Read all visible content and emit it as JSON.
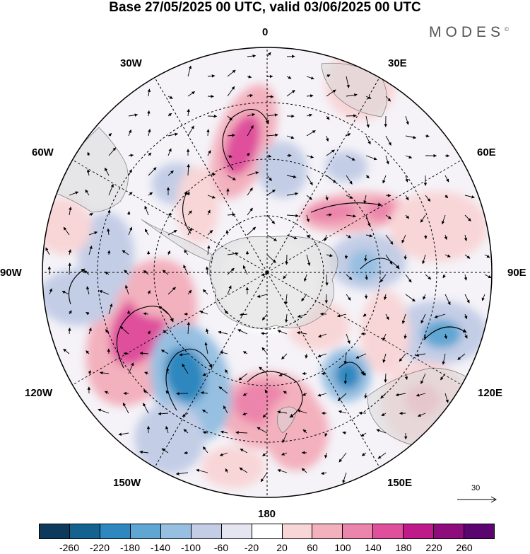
{
  "title": "Base 27/05/2025 00 UTC, valid 03/06/2025 00 UTC",
  "brand": "MODES",
  "brand_mark": "©",
  "map": {
    "projection": "south polar stereographic",
    "longitude_labels": {
      "top": "0",
      "top_right": "30E",
      "right_upper": "60E",
      "right": "90E",
      "right_lower": "120E",
      "bottom_right": "150E",
      "bottom": "180",
      "bottom_left": "150W",
      "left_lower": "120W",
      "left": "90W",
      "left_upper": "60W",
      "top_left": "30W"
    },
    "reference_vector": "30"
  },
  "colorbar": {
    "colors": [
      "#0d3a5c",
      "#13628f",
      "#2e88bf",
      "#5fa6d3",
      "#96bfe1",
      "#c3cde6",
      "#e5e4f1",
      "#ffffff",
      "#f8d6d7",
      "#f3b0bd",
      "#ec85ab",
      "#df4f9c",
      "#be1a8a",
      "#8c0d7b",
      "#5a066e"
    ],
    "tick_labels": [
      "-260",
      "-220",
      "-180",
      "-140",
      "-100",
      "-60",
      "-20",
      "20",
      "60",
      "100",
      "140",
      "180",
      "220",
      "260"
    ]
  }
}
